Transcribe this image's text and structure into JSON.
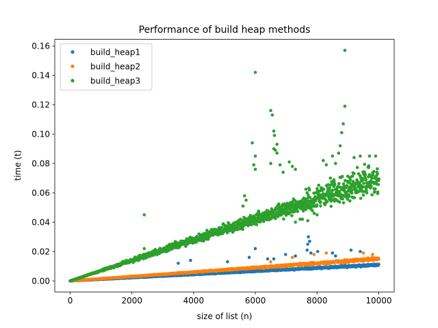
{
  "chart_data": {
    "type": "scatter",
    "title": "Performance of build heap methods",
    "xlabel": "size of list (n)",
    "ylabel": "time (t)",
    "xlim": [
      -500,
      10500
    ],
    "ylim": [
      -0.0075,
      0.1645
    ],
    "xticks": [
      0,
      2000,
      4000,
      6000,
      8000,
      10000
    ],
    "xtick_labels": [
      "0",
      "2000",
      "4000",
      "6000",
      "8000",
      "10000"
    ],
    "yticks": [
      0.0,
      0.02,
      0.04,
      0.06,
      0.08,
      0.1,
      0.12,
      0.14,
      0.16
    ],
    "ytick_labels": [
      "0.00",
      "0.02",
      "0.04",
      "0.06",
      "0.08",
      "0.10",
      "0.12",
      "0.14",
      "0.16"
    ],
    "grid": false,
    "legend_position": "top-left",
    "x_range": [
      1,
      10000
    ],
    "series": [
      {
        "name": "build_heap1",
        "color": "#1f77b4",
        "trend": "linear",
        "y_at_max_x": 0.011,
        "approx_slope_per_n": 1.1e-06,
        "outliers": [
          {
            "x": 6000,
            "y": 0.022
          },
          {
            "x": 3900,
            "y": 0.014
          },
          {
            "x": 7720,
            "y": 0.03
          },
          {
            "x": 7760,
            "y": 0.027
          },
          {
            "x": 7700,
            "y": 0.025
          },
          {
            "x": 7680,
            "y": 0.021
          },
          {
            "x": 7800,
            "y": 0.019
          },
          {
            "x": 6980,
            "y": 0.018
          },
          {
            "x": 6400,
            "y": 0.015
          },
          {
            "x": 6600,
            "y": 0.015
          },
          {
            "x": 8020,
            "y": 0.02
          },
          {
            "x": 9100,
            "y": 0.021
          },
          {
            "x": 9400,
            "y": 0.02
          },
          {
            "x": 8500,
            "y": 0.019
          },
          {
            "x": 3500,
            "y": 0.012
          },
          {
            "x": 5800,
            "y": 0.016
          },
          {
            "x": 7300,
            "y": 0.017
          },
          {
            "x": 5100,
            "y": 0.013
          },
          {
            "x": 8600,
            "y": 0.017
          }
        ]
      },
      {
        "name": "build_heap2",
        "color": "#ff7f0e",
        "trend": "linear",
        "y_at_max_x": 0.015,
        "approx_slope_per_n": 1.5e-06,
        "outliers": [
          {
            "x": 7900,
            "y": 0.018
          },
          {
            "x": 8300,
            "y": 0.019
          },
          {
            "x": 9500,
            "y": 0.019
          },
          {
            "x": 6500,
            "y": 0.013
          },
          {
            "x": 7200,
            "y": 0.016
          },
          {
            "x": 9800,
            "y": 0.018
          }
        ]
      },
      {
        "name": "build_heap3",
        "color": "#2ca02c",
        "trend": "linear",
        "y_at_max_x": 0.07,
        "approx_slope_per_n": 7e-06,
        "outliers": [
          {
            "x": 8900,
            "y": 0.157
          },
          {
            "x": 6000,
            "y": 0.142
          },
          {
            "x": 8900,
            "y": 0.119
          },
          {
            "x": 6500,
            "y": 0.116
          },
          {
            "x": 6550,
            "y": 0.113
          },
          {
            "x": 8850,
            "y": 0.107
          },
          {
            "x": 6600,
            "y": 0.102
          },
          {
            "x": 8800,
            "y": 0.101
          },
          {
            "x": 6620,
            "y": 0.099
          },
          {
            "x": 6700,
            "y": 0.093
          },
          {
            "x": 5900,
            "y": 0.094
          },
          {
            "x": 6600,
            "y": 0.09
          },
          {
            "x": 6650,
            "y": 0.089
          },
          {
            "x": 6700,
            "y": 0.087
          },
          {
            "x": 8750,
            "y": 0.092
          },
          {
            "x": 8700,
            "y": 0.087
          },
          {
            "x": 6000,
            "y": 0.085
          },
          {
            "x": 5950,
            "y": 0.079
          },
          {
            "x": 6000,
            "y": 0.076
          },
          {
            "x": 6500,
            "y": 0.08
          },
          {
            "x": 6800,
            "y": 0.079
          },
          {
            "x": 7100,
            "y": 0.081
          },
          {
            "x": 7200,
            "y": 0.078
          },
          {
            "x": 7300,
            "y": 0.076
          },
          {
            "x": 8200,
            "y": 0.082
          },
          {
            "x": 8300,
            "y": 0.079
          },
          {
            "x": 8500,
            "y": 0.085
          },
          {
            "x": 8600,
            "y": 0.08
          },
          {
            "x": 6900,
            "y": 0.074
          },
          {
            "x": 5650,
            "y": 0.058
          },
          {
            "x": 5700,
            "y": 0.055
          },
          {
            "x": 5600,
            "y": 0.051
          },
          {
            "x": 2400,
            "y": 0.045
          },
          {
            "x": 2400,
            "y": 0.022
          },
          {
            "x": 7300,
            "y": 0.04
          },
          {
            "x": 7450,
            "y": 0.042
          },
          {
            "x": 8000,
            "y": 0.045
          },
          {
            "x": 7700,
            "y": 0.041
          },
          {
            "x": 9200,
            "y": 0.084
          },
          {
            "x": 9400,
            "y": 0.085
          },
          {
            "x": 9700,
            "y": 0.085
          },
          {
            "x": 9900,
            "y": 0.085
          }
        ]
      }
    ]
  }
}
